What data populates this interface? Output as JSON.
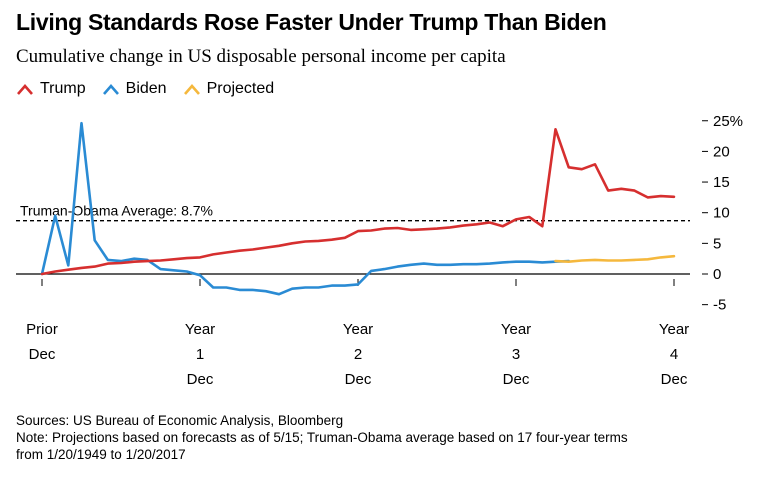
{
  "title": "Living Standards Rose Faster Under Trump Than Biden",
  "subtitle": "Cumulative change in US disposable personal income per capita",
  "legend": [
    {
      "label": "Trump",
      "color": "#d62f2f",
      "icon": "red-line-icon"
    },
    {
      "label": "Biden",
      "color": "#2a8bd4",
      "icon": "blue-line-icon"
    },
    {
      "label": "Projected",
      "color": "#f5b83d",
      "icon": "yellow-line-icon"
    }
  ],
  "footer": {
    "sources": "Sources: US Bureau of Economic Analysis, Bloomberg",
    "note_line1": "Note: Projections based on forecasts as of 5/15; Truman-Obama average based on 17 four-year terms",
    "note_line2": "from 1/20/1949 to 1/20/2017"
  },
  "chart_data": {
    "type": "line",
    "title": "Living Standards Rose Faster Under Trump Than Biden",
    "subtitle": "Cumulative change in US disposable personal income per capita",
    "xlabel": "",
    "ylabel": "",
    "ylim": [
      -5,
      25
    ],
    "xlim": [
      0,
      48
    ],
    "x_units": "months since prior December",
    "y_ticks": [
      25,
      20,
      15,
      10,
      5,
      0,
      -5
    ],
    "y_tick_labels": [
      "25%",
      "20",
      "15",
      "10",
      "5",
      "0",
      "-5"
    ],
    "x_ticks": [
      {
        "x": 0,
        "lines": [
          "Prior",
          "Dec"
        ]
      },
      {
        "x": 12,
        "lines": [
          "Year",
          "1",
          "Dec"
        ]
      },
      {
        "x": 24,
        "lines": [
          "Year",
          "2",
          "Dec"
        ]
      },
      {
        "x": 36,
        "lines": [
          "Year",
          "3",
          "Dec"
        ]
      },
      {
        "x": 48,
        "lines": [
          "Year",
          "4",
          "Dec"
        ]
      }
    ],
    "grid": false,
    "legend_position": "top-left",
    "reference_line": {
      "value": 8.7,
      "label": "Truman-Obama Average: 8.7%",
      "style": "dashed",
      "color": "#000000"
    },
    "zero_line": true,
    "series": [
      {
        "name": "Trump",
        "color": "#d62f2f",
        "x": [
          0,
          1,
          2,
          3,
          4,
          5,
          6,
          7,
          8,
          9,
          10,
          11,
          12,
          13,
          14,
          15,
          16,
          17,
          18,
          19,
          20,
          21,
          22,
          23,
          24,
          25,
          26,
          27,
          28,
          29,
          30,
          31,
          32,
          33,
          34,
          35,
          36,
          37,
          38,
          39,
          40,
          41,
          42,
          43,
          44,
          45,
          46,
          47,
          48
        ],
        "values": [
          0,
          0.4,
          0.7,
          1.0,
          1.2,
          1.7,
          1.8,
          2.0,
          2.1,
          2.2,
          2.4,
          2.6,
          2.7,
          3.2,
          3.5,
          3.8,
          4.0,
          4.3,
          4.6,
          5.0,
          5.3,
          5.4,
          5.6,
          5.9,
          7.0,
          7.1,
          7.4,
          7.5,
          7.2,
          7.3,
          7.4,
          7.6,
          7.9,
          8.1,
          8.4,
          7.8,
          8.9,
          9.3,
          7.8,
          23.6,
          17.4,
          17.1,
          17.9,
          13.6,
          13.9,
          13.6,
          12.5,
          12.7,
          12.6
        ]
      },
      {
        "name": "Biden",
        "color": "#2a8bd4",
        "x": [
          0,
          1,
          2,
          3,
          4,
          5,
          6,
          7,
          8,
          9,
          10,
          11,
          12,
          13,
          14,
          15,
          16,
          17,
          18,
          19,
          20,
          21,
          22,
          23,
          24,
          25,
          26,
          27,
          28,
          29,
          30,
          31,
          32,
          33,
          34,
          35,
          36,
          37,
          38,
          39,
          40
        ],
        "values": [
          0,
          9.5,
          1.4,
          24.6,
          5.5,
          2.3,
          2.1,
          2.5,
          2.3,
          0.8,
          0.6,
          0.4,
          -0.2,
          -2.2,
          -2.2,
          -2.6,
          -2.6,
          -2.8,
          -3.3,
          -2.4,
          -2.2,
          -2.2,
          -1.9,
          -1.9,
          -1.7,
          0.5,
          0.8,
          1.2,
          1.5,
          1.7,
          1.5,
          1.5,
          1.6,
          1.6,
          1.7,
          1.9,
          2.0,
          2.0,
          1.9,
          2.0,
          2.1
        ]
      },
      {
        "name": "Projected",
        "color": "#f5b83d",
        "x": [
          39,
          40,
          41,
          42,
          43,
          44,
          45,
          46,
          47,
          48
        ],
        "values": [
          2.1,
          2.0,
          2.2,
          2.3,
          2.2,
          2.2,
          2.3,
          2.4,
          2.7,
          2.9
        ]
      }
    ]
  }
}
